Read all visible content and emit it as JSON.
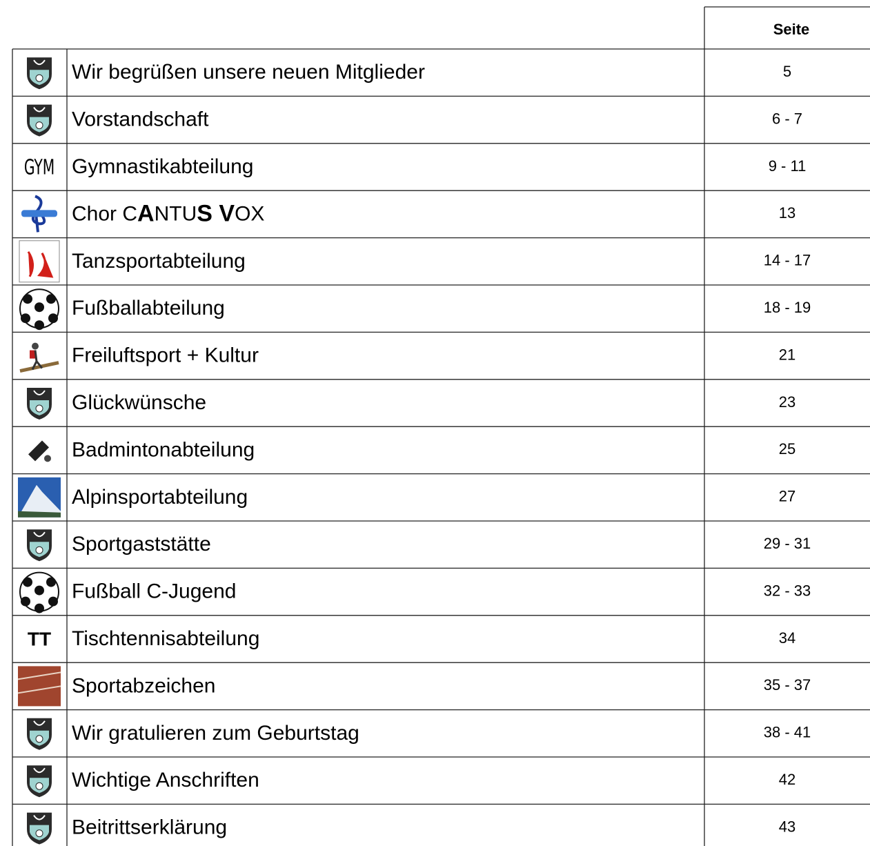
{
  "header": {
    "page_column": "Seite"
  },
  "icon_texts": {
    "gym": "GYM",
    "tt": "TT"
  },
  "rows": [
    {
      "title": [
        {
          "text": "Wir begrüßen unsere neuen Mitglieder",
          "bold": false
        }
      ],
      "pages": "5"
    },
    {
      "title": [
        {
          "text": "Vorstandschaft",
          "bold": false
        }
      ],
      "pages": "6 - 7"
    },
    {
      "title": [
        {
          "text": "Gymnastikabteilung",
          "bold": false
        }
      ],
      "pages": "9 - 11"
    },
    {
      "title": [
        {
          "text": "Chor C",
          "bold": false
        },
        {
          "text": "A",
          "bold": true
        },
        {
          "text": "NTU",
          "bold": false
        },
        {
          "text": "S V",
          "bold": true
        },
        {
          "text": "OX",
          "bold": false
        }
      ],
      "pages": "13"
    },
    {
      "title": [
        {
          "text": "Tanzsportabteilung",
          "bold": false
        }
      ],
      "pages": "14 - 17"
    },
    {
      "title": [
        {
          "text": "Fußballabteilung",
          "bold": false
        }
      ],
      "pages": "18 - 19"
    },
    {
      "title": [
        {
          "text": "Freiluftsport + Kultur",
          "bold": false
        }
      ],
      "pages": "21"
    },
    {
      "title": [
        {
          "text": "Glückwünsche",
          "bold": false
        }
      ],
      "pages": "23"
    },
    {
      "title": [
        {
          "text": "Badmintonabteilung",
          "bold": false
        }
      ],
      "pages": "25"
    },
    {
      "title": [
        {
          "text": "Alpinsportabteilung",
          "bold": false
        }
      ],
      "pages": "27"
    },
    {
      "title": [
        {
          "text": "Sportgaststätte",
          "bold": false
        }
      ],
      "pages": "29 - 31"
    },
    {
      "title": [
        {
          "text": "Fußball C-Jugend",
          "bold": false
        }
      ],
      "pages": "32 - 33"
    },
    {
      "title": [
        {
          "text": "Tischtennisabteilung",
          "bold": false
        }
      ],
      "pages": "34"
    },
    {
      "title": [
        {
          "text": "Sportabzeichen",
          "bold": false
        }
      ],
      "pages": "35 - 37"
    },
    {
      "title": [
        {
          "text": "Wir gratulieren zum Geburtstag",
          "bold": false
        }
      ],
      "pages": "38 - 41"
    },
    {
      "title": [
        {
          "text": "Wichtige Anschriften",
          "bold": false
        }
      ],
      "pages": "42"
    },
    {
      "title": [
        {
          "text": "Beitrittserklärung",
          "bold": false
        }
      ],
      "pages": "43"
    }
  ]
}
